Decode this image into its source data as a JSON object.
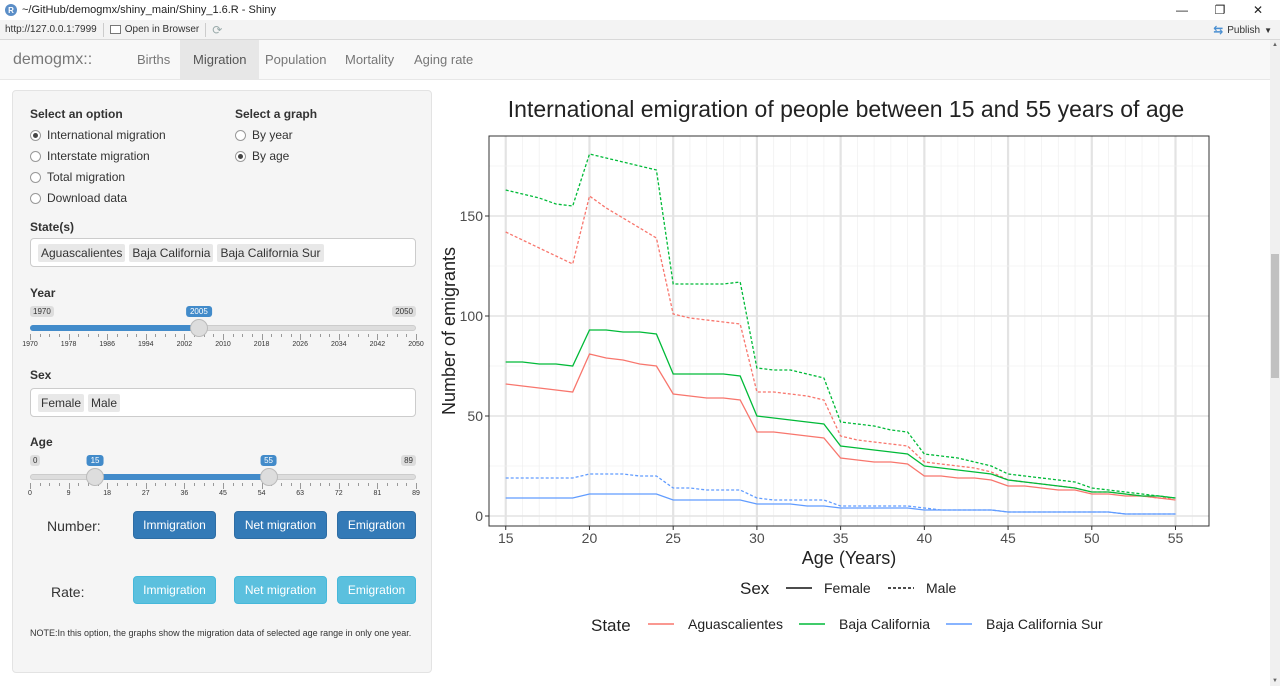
{
  "window": {
    "title": "~/GitHub/demogmx/shiny_main/Shiny_1.6.R - Shiny"
  },
  "toolbar": {
    "url": "http://127.0.0.1:7999",
    "open_browser": "Open in Browser",
    "publish": "Publish"
  },
  "navbar": {
    "brand": "demogmx::",
    "tabs": [
      "Births",
      "Migration",
      "Population",
      "Mortality",
      "Aging rate"
    ],
    "active": "Migration"
  },
  "sidebar": {
    "option_label": "Select an option",
    "options": [
      "International migration",
      "Interstate migration",
      "Total migration",
      "Download data"
    ],
    "option_selected": "International migration",
    "graph_label": "Select a graph",
    "graphs": [
      "By year",
      "By age"
    ],
    "graph_selected": "By age",
    "states_label": "State(s)",
    "states": [
      "Aguascalientes",
      "Baja California",
      "Baja California Sur"
    ],
    "year": {
      "label": "Year",
      "min": 1970,
      "max": 2050,
      "value": 2005,
      "min_label": "1970",
      "max_label": "2050",
      "value_label": "2005",
      "tick_labels": [
        "1970",
        "1978",
        "1986",
        "1994",
        "2002",
        "2010",
        "2018",
        "2026",
        "2034",
        "2042",
        "2050"
      ]
    },
    "sex_label": "Sex",
    "sexes": [
      "Female",
      "Male"
    ],
    "age": {
      "label": "Age",
      "min": 0,
      "max": 89,
      "from": 15,
      "to": 55,
      "min_label": "0",
      "max_label": "89",
      "from_label": "15",
      "to_label": "55",
      "tick_labels": [
        "0",
        "9",
        "18",
        "27",
        "36",
        "45",
        "54",
        "63",
        "72",
        "81",
        "89"
      ]
    },
    "number_label": "Number:",
    "rate_label": "Rate:",
    "number_buttons": [
      "Immigration",
      "Net migration",
      "Emigration"
    ],
    "rate_buttons": [
      "Immigration",
      "Net migration",
      "Emigration"
    ],
    "note": "NOTE:In this option, the graphs show the migration data of selected age range in only one year."
  },
  "chart_data": {
    "type": "line",
    "title": "International emigration of people between 15 and 55 years of age",
    "xlabel": "Age (Years)",
    "ylabel": "Number of emigrants",
    "xlim": [
      14,
      57
    ],
    "ylim": [
      -5,
      190
    ],
    "x_ticks": [
      15,
      20,
      25,
      30,
      35,
      40,
      45,
      50,
      55
    ],
    "y_ticks": [
      0,
      50,
      100,
      150
    ],
    "grid": true,
    "legend_sex": {
      "title": "Sex",
      "entries": [
        "Female",
        "Male"
      ]
    },
    "legend_state": {
      "title": "State",
      "entries": [
        "Aguascalientes",
        "Baja California",
        "Baja California Sur"
      ]
    },
    "colors": {
      "Aguascalientes": "#F8766D",
      "Baja California": "#00BA38",
      "Baja California Sur": "#619CFF"
    },
    "x": [
      15,
      16,
      17,
      18,
      19,
      20,
      21,
      22,
      23,
      24,
      25,
      26,
      27,
      28,
      29,
      30,
      31,
      32,
      33,
      34,
      35,
      36,
      37,
      38,
      39,
      40,
      41,
      42,
      43,
      44,
      45,
      46,
      47,
      48,
      49,
      50,
      51,
      52,
      53,
      54,
      55
    ],
    "series": [
      {
        "state": "Aguascalientes",
        "sex": "Female",
        "values": [
          66,
          65,
          64,
          63,
          62,
          81,
          79,
          78,
          76,
          75,
          61,
          60,
          59,
          59,
          58,
          42,
          42,
          41,
          40,
          39,
          29,
          28,
          27,
          27,
          26,
          20,
          20,
          19,
          19,
          18,
          15,
          15,
          14,
          13,
          13,
          11,
          11,
          10,
          10,
          9,
          8
        ]
      },
      {
        "state": "Aguascalientes",
        "sex": "Male",
        "values": [
          142,
          138,
          134,
          130,
          126,
          160,
          154,
          149,
          144,
          139,
          101,
          99,
          98,
          97,
          96,
          62,
          62,
          61,
          60,
          58,
          40,
          38,
          37,
          36,
          35,
          27,
          26,
          25,
          24,
          22,
          18,
          17,
          16,
          15,
          14,
          12,
          12,
          11,
          10,
          9,
          9
        ]
      },
      {
        "state": "Baja California",
        "sex": "Female",
        "values": [
          77,
          77,
          76,
          76,
          75,
          93,
          93,
          92,
          92,
          91,
          71,
          71,
          71,
          71,
          70,
          50,
          49,
          48,
          47,
          46,
          35,
          34,
          33,
          32,
          31,
          25,
          24,
          23,
          22,
          21,
          18,
          17,
          16,
          15,
          14,
          12,
          12,
          11,
          10,
          10,
          9
        ]
      },
      {
        "state": "Baja California",
        "sex": "Male",
        "values": [
          163,
          161,
          159,
          156,
          155,
          181,
          179,
          177,
          175,
          173,
          116,
          116,
          116,
          116,
          117,
          74,
          73,
          73,
          71,
          69,
          47,
          46,
          45,
          43,
          42,
          31,
          30,
          29,
          27,
          25,
          21,
          20,
          19,
          18,
          17,
          14,
          13,
          12,
          11,
          10,
          9
        ]
      },
      {
        "state": "Baja California Sur",
        "sex": "Female",
        "values": [
          9,
          9,
          9,
          9,
          9,
          11,
          11,
          11,
          11,
          11,
          8,
          8,
          8,
          8,
          8,
          6,
          6,
          6,
          5,
          5,
          4,
          4,
          4,
          4,
          4,
          3,
          3,
          3,
          3,
          3,
          2,
          2,
          2,
          2,
          2,
          2,
          2,
          1,
          1,
          1,
          1
        ]
      },
      {
        "state": "Baja California Sur",
        "sex": "Male",
        "values": [
          19,
          19,
          19,
          19,
          19,
          21,
          21,
          21,
          20,
          20,
          14,
          14,
          13,
          13,
          13,
          9,
          8,
          8,
          8,
          8,
          5,
          5,
          5,
          5,
          5,
          4,
          3,
          3,
          3,
          3,
          2,
          2,
          2,
          2,
          2,
          2,
          2,
          1,
          1,
          1,
          1
        ]
      }
    ]
  }
}
